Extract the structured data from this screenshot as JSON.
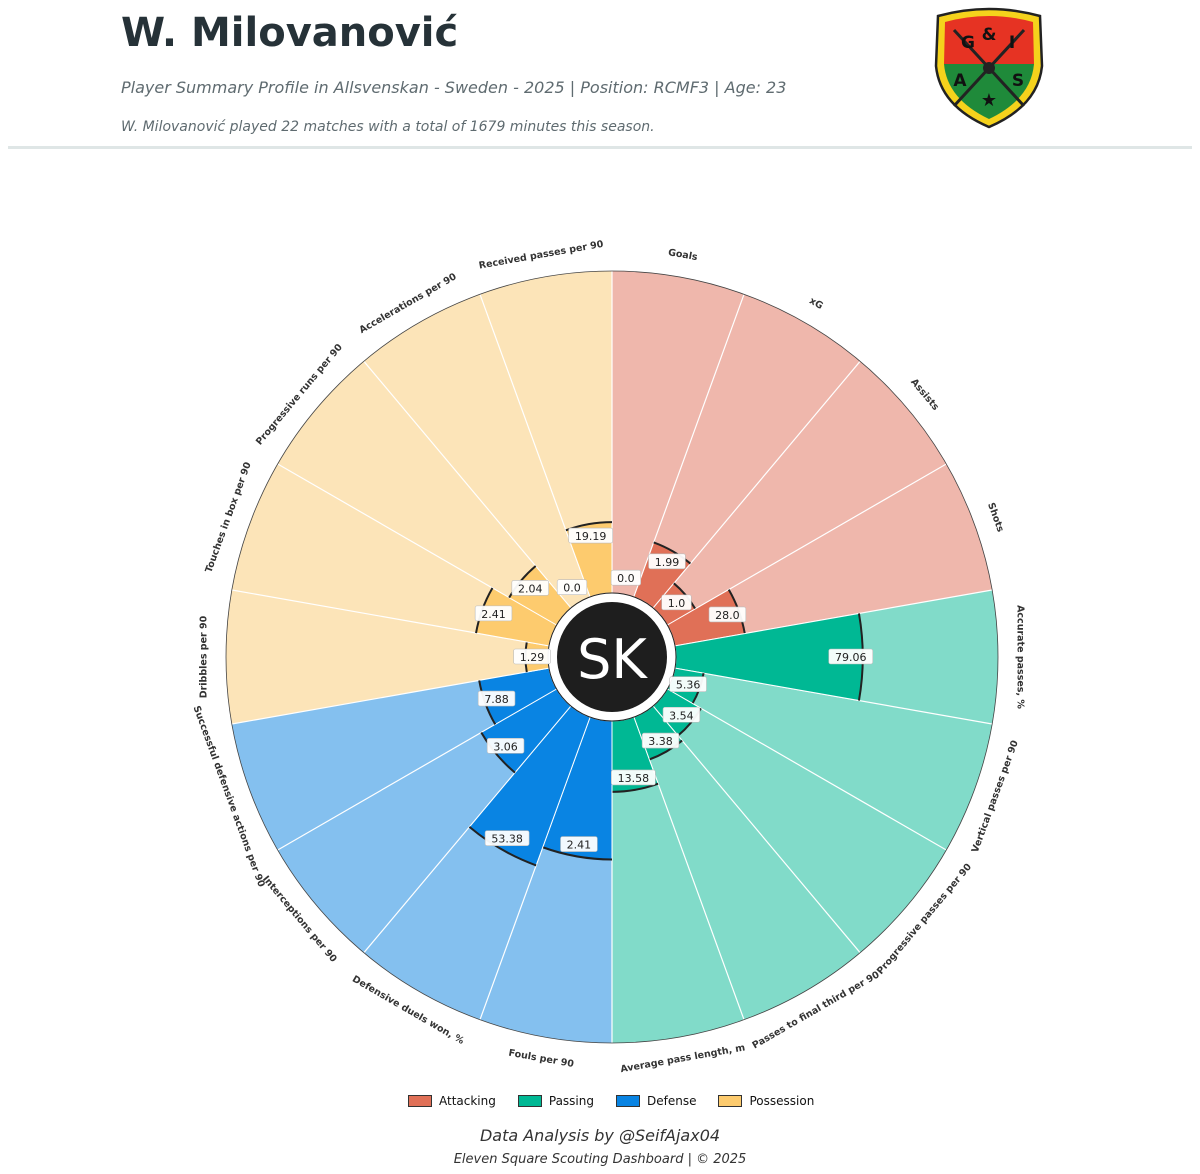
{
  "header": {
    "player_name": "W. Milovanović",
    "subtitle": "Player Summary Profile in Allsvenskan - Sweden - 2025 | Position: RCMF3 | Age: 23",
    "summary": "W. Milovanović played 22 matches with a total of 1679 minutes this season."
  },
  "crest": {
    "letters": [
      "G",
      "A",
      "I",
      "S"
    ],
    "symbol": "&",
    "colors": {
      "red": "#e63323",
      "green": "#1f8a3a",
      "gold": "#f5d21c",
      "outline": "#222222"
    }
  },
  "center_logo": {
    "text": "SK",
    "bg": "#1e1e1e",
    "color": "#ffffff"
  },
  "chart_data": {
    "type": "radial_bar",
    "percentile_max": 100,
    "categories": [
      {
        "name": "Attacking",
        "color": "#e07057",
        "bg_color": "#efb7ac"
      },
      {
        "name": "Passing",
        "color": "#00b894",
        "bg_color": "#81dbc9"
      },
      {
        "name": "Defense",
        "color": "#0984e3",
        "bg_color": "#84c0ef"
      },
      {
        "name": "Possession",
        "color": "#fdcb6e",
        "bg_color": "#fce4b8"
      }
    ],
    "metrics": [
      {
        "label": "Goals",
        "value": "0.0",
        "category": "Attacking",
        "percentile": 0
      },
      {
        "label": "xG",
        "value": "1.99",
        "category": "Attacking",
        "percentile": 18
      },
      {
        "label": "Assists",
        "value": "1.0",
        "category": "Attacking",
        "percentile": 10
      },
      {
        "label": "Shots",
        "value": "28.0",
        "category": "Attacking",
        "percentile": 22
      },
      {
        "label": "Accurate passes, %",
        "value": "79.06",
        "category": "Passing",
        "percentile": 58
      },
      {
        "label": "Vertical passes per 90",
        "value": "5.36",
        "category": "Passing",
        "percentile": 9
      },
      {
        "label": "Progressive passes per 90",
        "value": "3.54",
        "category": "Passing",
        "percentile": 12
      },
      {
        "label": "Passes to final third per 90",
        "value": "3.38",
        "category": "Passing",
        "percentile": 14
      },
      {
        "label": "Average pass length, m",
        "value": "13.58",
        "category": "Passing",
        "percentile": 22
      },
      {
        "label": "Fouls per 90",
        "value": "2.41",
        "category": "Defense",
        "percentile": 43
      },
      {
        "label": "Defensive duels won, %",
        "value": "53.38",
        "category": "Defense",
        "percentile": 49
      },
      {
        "label": "Interceptions per 90",
        "value": "3.06",
        "category": "Defense",
        "percentile": 27
      },
      {
        "label": "Successful defensive actions per 90",
        "value": "7.88",
        "category": "Defense",
        "percentile": 22
      },
      {
        "label": "Dribbles per 90",
        "value": "1.29",
        "category": "Possession",
        "percentile": 7
      },
      {
        "label": "Touches in box per 90",
        "value": "2.41",
        "category": "Possession",
        "percentile": 23
      },
      {
        "label": "Progressive runs per 90",
        "value": "2.04",
        "category": "Possession",
        "percentile": 17
      },
      {
        "label": "Accelerations per 90",
        "value": "0.0",
        "category": "Possession",
        "percentile": 0
      },
      {
        "label": "Received passes per 90",
        "value": "19.19",
        "category": "Possession",
        "percentile": 22
      }
    ]
  },
  "legend": [
    {
      "label": "Attacking",
      "color": "#e07057"
    },
    {
      "label": "Passing",
      "color": "#00b894"
    },
    {
      "label": "Defense",
      "color": "#0984e3"
    },
    {
      "label": "Possession",
      "color": "#fdcb6e"
    }
  ],
  "footer": {
    "credit": "Data Analysis by @SeifAjax04",
    "copyright": "Eleven Square Scouting Dashboard | © 2025"
  }
}
